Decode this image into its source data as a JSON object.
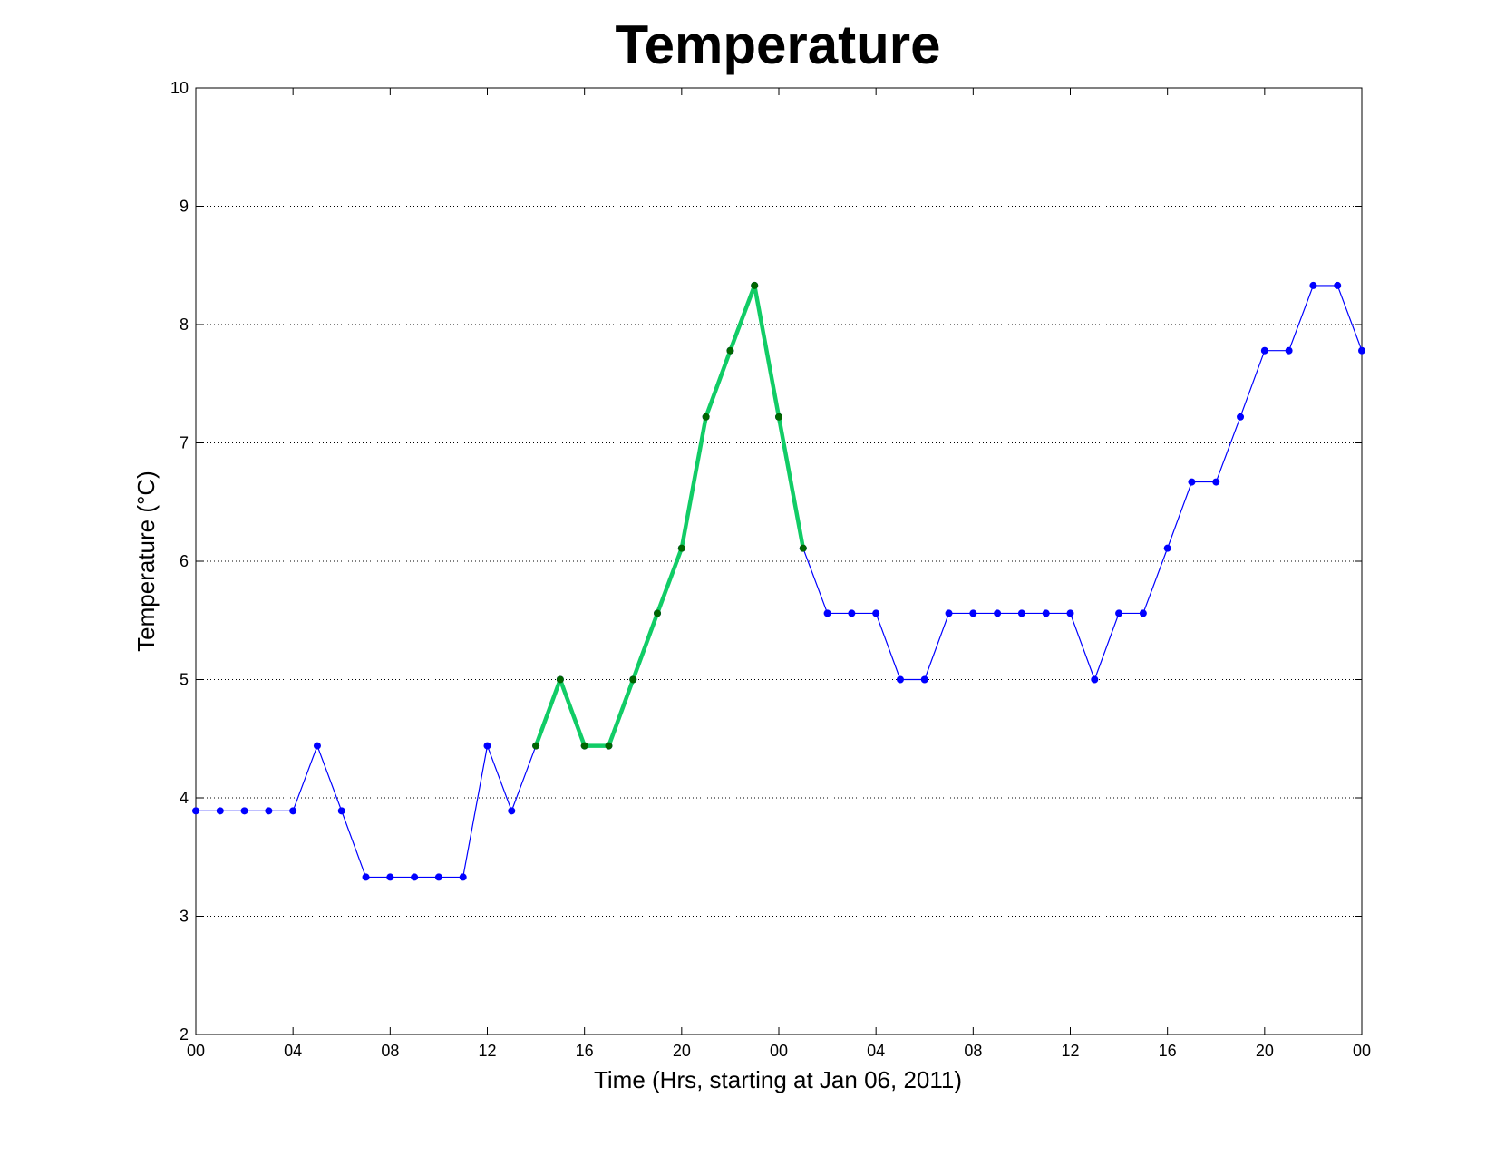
{
  "chart_data": {
    "type": "line",
    "title": "Temperature",
    "xlabel": "Time (Hrs, starting at Jan 06, 2011)",
    "ylabel": "Temperature (°C)",
    "ylim": [
      2,
      10
    ],
    "xlim": [
      0,
      48
    ],
    "y_ticks": [
      "2",
      "3",
      "4",
      "5",
      "6",
      "7",
      "8",
      "9",
      "10"
    ],
    "x_ticks": [
      {
        "x": 0,
        "label": "00"
      },
      {
        "x": 4,
        "label": "04"
      },
      {
        "x": 8,
        "label": "08"
      },
      {
        "x": 12,
        "label": "12"
      },
      {
        "x": 16,
        "label": "16"
      },
      {
        "x": 20,
        "label": "20"
      },
      {
        "x": 24,
        "label": "00"
      },
      {
        "x": 28,
        "label": "04"
      },
      {
        "x": 32,
        "label": "08"
      },
      {
        "x": 36,
        "label": "12"
      },
      {
        "x": 40,
        "label": "16"
      },
      {
        "x": 44,
        "label": "20"
      },
      {
        "x": 48,
        "label": "00"
      }
    ],
    "grid": "horizontal-dotted",
    "series": [
      {
        "color": "#0000ff",
        "x": [
          0,
          1,
          2,
          3,
          4,
          5,
          6,
          7,
          8,
          9,
          10,
          11,
          12,
          13,
          14,
          15,
          16,
          17,
          18,
          19,
          20,
          21,
          22,
          23,
          24,
          25,
          26,
          27,
          28,
          29,
          30,
          31,
          32,
          33,
          34,
          35,
          36,
          37,
          38,
          39,
          40,
          41,
          42,
          43,
          44,
          45,
          46,
          47,
          48
        ],
        "values": [
          3.89,
          3.89,
          3.89,
          3.89,
          3.89,
          4.44,
          3.89,
          3.33,
          3.33,
          3.33,
          3.33,
          3.33,
          4.44,
          3.89,
          4.44,
          5.0,
          4.44,
          4.44,
          5.0,
          5.56,
          6.11,
          7.22,
          7.78,
          8.33,
          7.22,
          6.11,
          5.56,
          5.56,
          5.56,
          5.0,
          5.0,
          5.56,
          5.56,
          5.56,
          5.56,
          5.56,
          5.56,
          5.0,
          5.56,
          5.56,
          6.11,
          6.67,
          6.67,
          7.22,
          7.78,
          7.78,
          8.33,
          8.33,
          7.78
        ]
      },
      {
        "color": "#11cc66",
        "marker_color": "#006600",
        "x": [
          14,
          15,
          16,
          17,
          18,
          19,
          20,
          21,
          22,
          23,
          24,
          25
        ],
        "values": [
          4.44,
          5.0,
          4.44,
          4.44,
          5.0,
          5.56,
          6.11,
          7.22,
          7.78,
          8.33,
          7.22,
          6.11
        ]
      }
    ]
  }
}
